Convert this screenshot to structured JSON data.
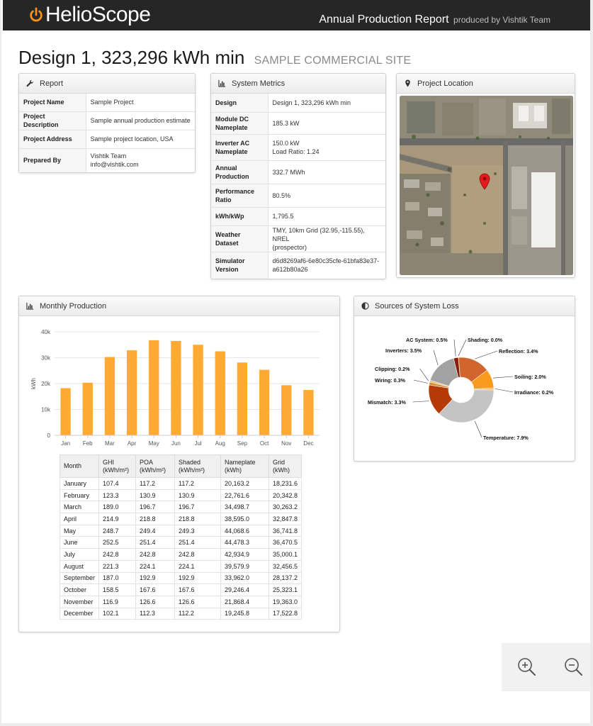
{
  "header": {
    "brand": "HelioScope",
    "report_title": "Annual Production Report",
    "report_sub": "produced by Vishtik Team"
  },
  "design": {
    "title": "Design 1, 323,296 kWh min",
    "site": "SAMPLE COMMERCIAL SITE"
  },
  "report": {
    "heading": "Report",
    "rows": [
      {
        "k": "Project Name",
        "v": "Sample Project"
      },
      {
        "k": "Project Description",
        "v": "Sample annual production estimate"
      },
      {
        "k": "Project Address",
        "v": "Sample project location, USA"
      },
      {
        "k": "Prepared By",
        "v": "Vishtik Team",
        "v2": "info@vishtik.com"
      }
    ]
  },
  "metrics": {
    "heading": "System Metrics",
    "rows": [
      {
        "k": "Design",
        "v": "Design 1, 323,296 kWh min"
      },
      {
        "k": "Module DC",
        "k2": "Nameplate",
        "v": "185.3 kW"
      },
      {
        "k": "Inverter AC",
        "k2": "Nameplate",
        "v": "150.0 kW",
        "v2": "Load Ratio: 1.24"
      },
      {
        "k": "Annual",
        "k2": "Production",
        "v": "332.7 MWh"
      },
      {
        "k": "Performance",
        "k2": "Ratio",
        "v": "80.5%"
      },
      {
        "k": "kWh/kWp",
        "v": "1,795.5"
      },
      {
        "k": "Weather Dataset",
        "v": "TMY, 10km Grid (32.95,-115.55), NREL",
        "v2": "(prospector)"
      },
      {
        "k": "Simulator",
        "k2": "Version",
        "v": "d6d8269af6-6e80c35cfe-61bfa83e37-",
        "v2": "a612b80a26"
      }
    ]
  },
  "location": {
    "heading": "Project Location"
  },
  "monthly": {
    "heading": "Monthly Production",
    "table_headers": [
      {
        "l1": "Month",
        "l2": ""
      },
      {
        "l1": "GHI",
        "l2": "(kWh/m²)"
      },
      {
        "l1": "POA",
        "l2": "(kWh/m²)"
      },
      {
        "l1": "Shaded",
        "l2": "(kWh/m²)"
      },
      {
        "l1": "Nameplate",
        "l2": "(kWh)"
      },
      {
        "l1": "Grid",
        "l2": "(kWh)"
      }
    ],
    "table_rows": [
      [
        "January",
        "107.4",
        "117.2",
        "117.2",
        "20,163.2",
        "18,231.6"
      ],
      [
        "February",
        "123.3",
        "130.9",
        "130.9",
        "22,761.6",
        "20,342.8"
      ],
      [
        "March",
        "189.0",
        "196.7",
        "196.7",
        "34,498.7",
        "30,263.2"
      ],
      [
        "April",
        "214.9",
        "218.8",
        "218.8",
        "38,595.0",
        "32,847.8"
      ],
      [
        "May",
        "248.7",
        "249.4",
        "249.3",
        "44,068.6",
        "36,741.8"
      ],
      [
        "June",
        "252.5",
        "251.4",
        "251.4",
        "44,478.3",
        "36,470.5"
      ],
      [
        "July",
        "242.8",
        "242.8",
        "242.8",
        "42,934.9",
        "35,000.1"
      ],
      [
        "August",
        "221.3",
        "224.1",
        "224.1",
        "39,579.9",
        "32,456.5"
      ],
      [
        "September",
        "187.0",
        "192.9",
        "192.9",
        "33,962.0",
        "28,137.2"
      ],
      [
        "October",
        "158.5",
        "167.6",
        "167.6",
        "29,246.4",
        "25,323.1"
      ],
      [
        "November",
        "116.9",
        "126.6",
        "126.6",
        "21,868.4",
        "19,363.0"
      ],
      [
        "December",
        "102.1",
        "112.3",
        "112.2",
        "19,245.8",
        "17,522.8"
      ]
    ]
  },
  "loss": {
    "heading": "Sources of System Loss"
  },
  "chart_data": [
    {
      "type": "bar",
      "ylabel": "kWh",
      "categories": [
        "Jan",
        "Feb",
        "Mar",
        "Apr",
        "May",
        "Jun",
        "Jul",
        "Aug",
        "Sep",
        "Oct",
        "Nov",
        "Dec"
      ],
      "values": [
        18231.6,
        20342.8,
        30263.2,
        32847.8,
        36741.8,
        36470.5,
        35000.1,
        32456.5,
        28137.2,
        25323.1,
        19363.0,
        17522.8
      ],
      "ylim": [
        0,
        40000
      ],
      "yticks": [
        "0",
        "10k",
        "20k",
        "30k",
        "40k"
      ],
      "grid": true,
      "color": "#ffaa33"
    },
    {
      "type": "pie",
      "slices": [
        {
          "label": "Shading: 0.0%",
          "value": 0.02,
          "color": "#b93300"
        },
        {
          "label": "Reflection: 3.4%",
          "value": 3.4,
          "color": "#d2652b"
        },
        {
          "label": "Soiling: 2.0%",
          "value": 2.0,
          "color": "#f79a1e"
        },
        {
          "label": "Irradiance: 0.2%",
          "value": 0.2,
          "color": "#f5b75c"
        },
        {
          "label": "Temperature: 7.9%",
          "value": 7.9,
          "color": "#c4c4c4"
        },
        {
          "label": "Mismatch: 3.3%",
          "value": 3.3,
          "color": "#b63a08"
        },
        {
          "label": "Wiring: 0.3%",
          "value": 0.3,
          "color": "#d98a2a"
        },
        {
          "label": "Clipping: 0.2%",
          "value": 0.2,
          "color": "#e8bb73"
        },
        {
          "label": "Inverters: 3.5%",
          "value": 3.5,
          "color": "#a2a2a2"
        },
        {
          "label": "AC System: 0.5%",
          "value": 0.5,
          "color": "#8d1c0a"
        }
      ]
    }
  ]
}
